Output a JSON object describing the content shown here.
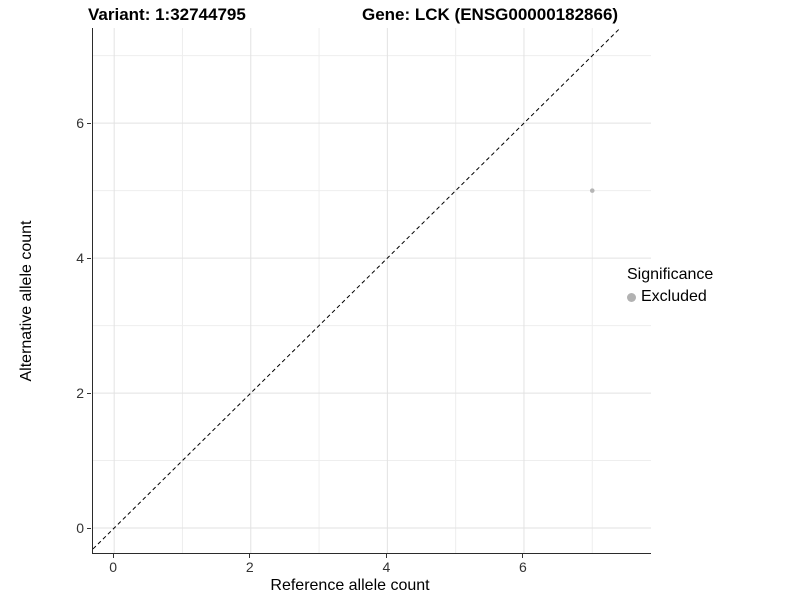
{
  "chart_data": {
    "type": "scatter",
    "titles": {
      "left": "Variant: 1:32744795",
      "right": "Gene: LCK (ENSG00000182866)"
    },
    "xlabel": "Reference allele count",
    "ylabel": "Alternative allele count",
    "x_ticks": [
      0,
      2,
      4,
      6
    ],
    "y_ticks": [
      0,
      2,
      4,
      6
    ],
    "xlim": [
      -0.31,
      7.86
    ],
    "ylim": [
      -0.37,
      7.41
    ],
    "grid": {
      "major": true,
      "minor": true
    },
    "points": [
      {
        "x": 7,
        "y": 5,
        "series": "Excluded"
      }
    ],
    "reference_line": {
      "description": "identity line y = x",
      "style": "dashed",
      "color": "#000000"
    },
    "legend": {
      "title": "Significance",
      "position": "right",
      "items": [
        {
          "label": "Excluded",
          "color": "#b2b2b2"
        }
      ]
    },
    "colors": {
      "background": "#ffffff",
      "point": "#b5b5b5",
      "grid_major": "#e2e2e2",
      "grid_minor": "#eeeeee",
      "axis_line": "#2b2b2b",
      "tick_label": "#333333"
    }
  }
}
